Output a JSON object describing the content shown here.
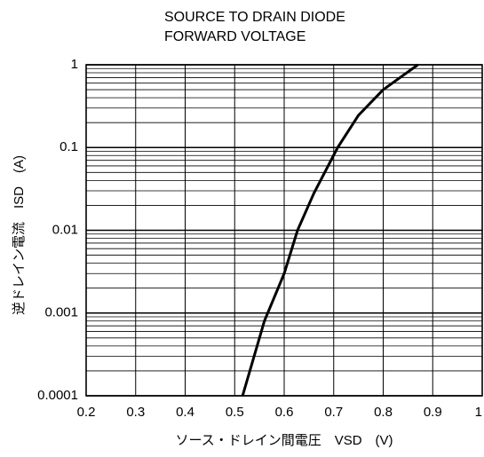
{
  "chart_data": {
    "type": "line",
    "title": [
      "SOURCE TO DRAIN DIODE",
      "FORWARD VOLTAGE"
    ],
    "x_label": "ソース・ドレイン間電圧　VSD　(V)",
    "y_label": "逆ドレイン電流　ISD　(A)",
    "x": [
      0.516,
      0.56,
      0.6,
      0.627,
      0.66,
      0.708,
      0.75,
      0.8,
      0.87
    ],
    "values": [
      0.0001,
      0.0008,
      0.003,
      0.01,
      0.028,
      0.1,
      0.245,
      0.5,
      1
    ],
    "color": "#000000",
    "xlim": [
      0.2,
      1
    ],
    "xticks": [
      0.2,
      0.3,
      0.4,
      0.5,
      0.6,
      0.7,
      0.8,
      0.9,
      1
    ],
    "ylim": [
      0.0001,
      1
    ],
    "yticks": [
      1,
      0.1,
      0.01,
      0.001,
      0.0001
    ],
    "ylog": true,
    "grid": true
  }
}
